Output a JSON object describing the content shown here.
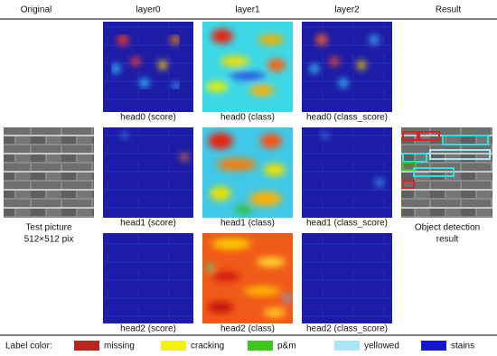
{
  "header": {
    "columns": [
      "Original",
      "layer0",
      "layer1",
      "layer2",
      "Result"
    ]
  },
  "grid": {
    "rows": [
      [
        "head0 (score)",
        "head0 (class)",
        "head0 (class_score)"
      ],
      [
        "head1 (score)",
        "head1 (class)",
        "head1 (class_score)"
      ],
      [
        "head2 (score)",
        "head2 (class)",
        "head2 (class_score)"
      ]
    ]
  },
  "test_picture": {
    "caption_lines": [
      "Test picture",
      "512×512 pix"
    ]
  },
  "result": {
    "caption_lines": [
      "Object detection",
      "result"
    ]
  },
  "legend": {
    "title": "Label color:",
    "items": [
      {
        "label": "missing",
        "color": "#b5261e"
      },
      {
        "label": "cracking",
        "color": "#f2f20a"
      },
      {
        "label": "p&m",
        "color": "#3ec81e"
      },
      {
        "label": "yellowed",
        "color": "#a8e4f4"
      },
      {
        "label": "stains",
        "color": "#1414d2"
      }
    ]
  }
}
